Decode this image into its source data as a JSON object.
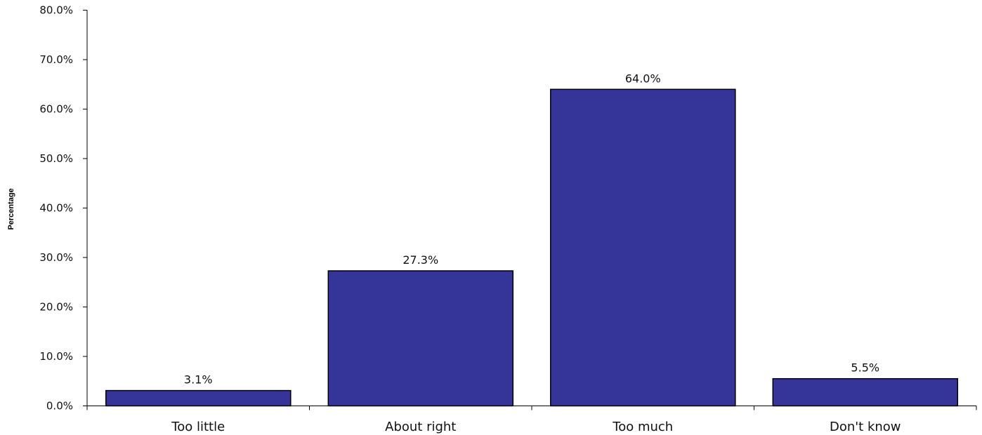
{
  "chart_data": {
    "type": "bar",
    "categories": [
      "Too little",
      "About right",
      "Too much",
      "Don't know"
    ],
    "values": [
      3.1,
      27.3,
      64.0,
      5.5
    ],
    "data_labels": [
      "3.1%",
      "27.3%",
      "64.0%",
      "5.5%"
    ],
    "title": "",
    "xlabel": "",
    "ylabel": "Percentage",
    "ylim": [
      0,
      80
    ],
    "yticks": [
      0,
      10,
      20,
      30,
      40,
      50,
      60,
      70,
      80
    ],
    "ytick_labels": [
      "0.0%",
      "10.0%",
      "20.0%",
      "30.0%",
      "40.0%",
      "50.0%",
      "60.0%",
      "70.0%",
      "80.0%"
    ],
    "grid": false,
    "legend": "none",
    "bar_color": "#353599",
    "bar_edge_color": "#000000"
  }
}
